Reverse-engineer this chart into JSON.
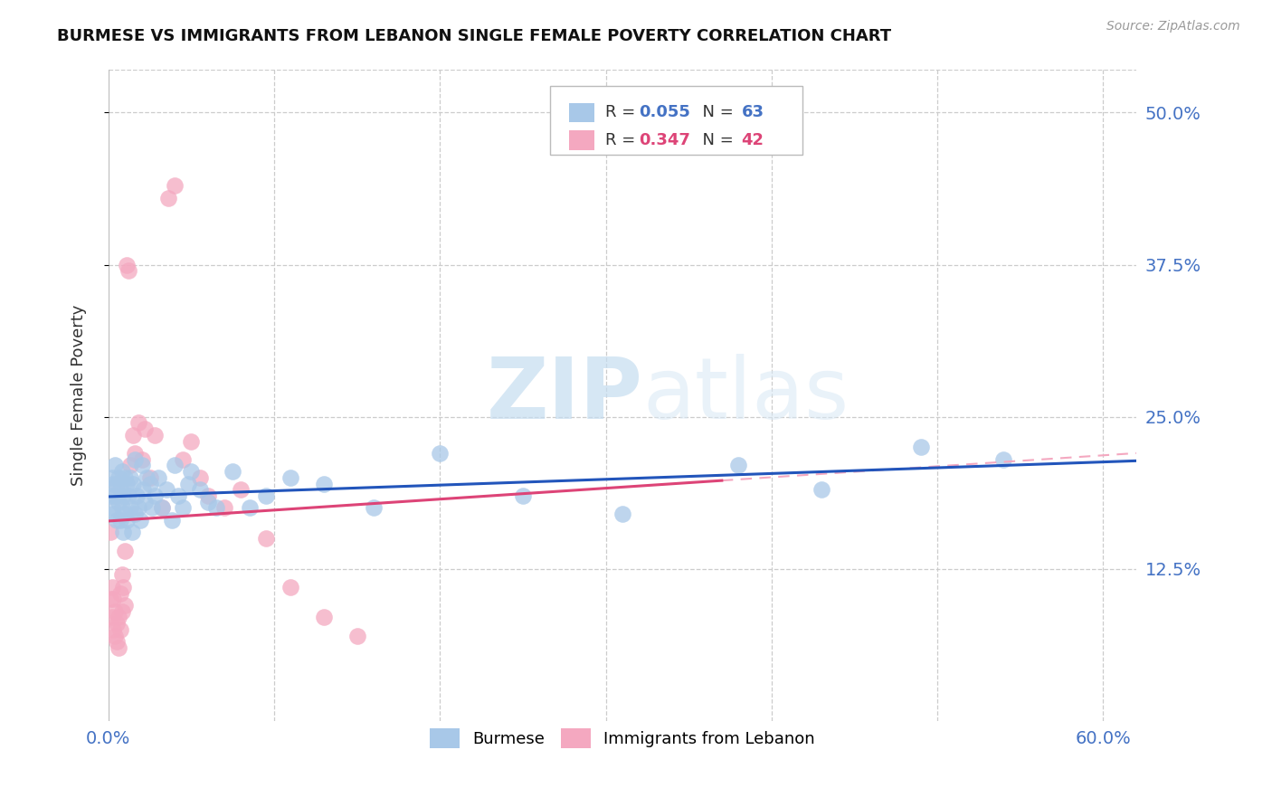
{
  "title": "BURMESE VS IMMIGRANTS FROM LEBANON SINGLE FEMALE POVERTY CORRELATION CHART",
  "source": "Source: ZipAtlas.com",
  "ylabel": "Single Female Poverty",
  "yticks": [
    "12.5%",
    "25.0%",
    "37.5%",
    "50.0%"
  ],
  "ytick_vals": [
    0.125,
    0.25,
    0.375,
    0.5
  ],
  "xlim": [
    0.0,
    0.62
  ],
  "ylim": [
    0.0,
    0.535
  ],
  "legend_label1": "Burmese",
  "legend_label2": "Immigrants from Lebanon",
  "R1": "0.055",
  "N1": "63",
  "R2": "0.347",
  "N2": "42",
  "color_blue": "#a8c8e8",
  "color_pink": "#f4a8c0",
  "color_blue_line": "#2255bb",
  "color_pink_line": "#dd4477",
  "color_pink_dash": "#f4a8c0",
  "watermark_zip": "ZIP",
  "watermark_atlas": "atlas",
  "burmese_x": [
    0.001,
    0.002,
    0.002,
    0.003,
    0.003,
    0.004,
    0.004,
    0.005,
    0.005,
    0.006,
    0.006,
    0.007,
    0.007,
    0.008,
    0.008,
    0.009,
    0.009,
    0.01,
    0.01,
    0.011,
    0.011,
    0.012,
    0.013,
    0.013,
    0.014,
    0.015,
    0.016,
    0.016,
    0.017,
    0.018,
    0.019,
    0.02,
    0.021,
    0.022,
    0.023,
    0.025,
    0.026,
    0.028,
    0.03,
    0.032,
    0.035,
    0.038,
    0.04,
    0.042,
    0.045,
    0.048,
    0.05,
    0.055,
    0.06,
    0.065,
    0.075,
    0.085,
    0.095,
    0.11,
    0.13,
    0.16,
    0.2,
    0.25,
    0.31,
    0.38,
    0.43,
    0.49,
    0.54
  ],
  "burmese_y": [
    0.185,
    0.2,
    0.175,
    0.195,
    0.17,
    0.21,
    0.185,
    0.165,
    0.195,
    0.18,
    0.2,
    0.165,
    0.19,
    0.175,
    0.205,
    0.155,
    0.185,
    0.2,
    0.17,
    0.195,
    0.165,
    0.185,
    0.2,
    0.175,
    0.155,
    0.195,
    0.17,
    0.215,
    0.185,
    0.175,
    0.165,
    0.21,
    0.19,
    0.18,
    0.2,
    0.195,
    0.175,
    0.185,
    0.2,
    0.175,
    0.19,
    0.165,
    0.21,
    0.185,
    0.175,
    0.195,
    0.205,
    0.19,
    0.18,
    0.175,
    0.205,
    0.175,
    0.185,
    0.2,
    0.195,
    0.175,
    0.22,
    0.185,
    0.17,
    0.21,
    0.19,
    0.225,
    0.215
  ],
  "lebanon_x": [
    0.001,
    0.001,
    0.002,
    0.002,
    0.003,
    0.003,
    0.004,
    0.004,
    0.005,
    0.005,
    0.006,
    0.006,
    0.007,
    0.007,
    0.008,
    0.008,
    0.009,
    0.01,
    0.01,
    0.011,
    0.012,
    0.013,
    0.015,
    0.016,
    0.018,
    0.02,
    0.022,
    0.025,
    0.028,
    0.032,
    0.036,
    0.04,
    0.045,
    0.05,
    0.055,
    0.06,
    0.07,
    0.08,
    0.095,
    0.11,
    0.13,
    0.15
  ],
  "lebanon_y": [
    0.155,
    0.1,
    0.11,
    0.085,
    0.1,
    0.075,
    0.09,
    0.07,
    0.08,
    0.065,
    0.085,
    0.06,
    0.105,
    0.075,
    0.12,
    0.09,
    0.11,
    0.14,
    0.095,
    0.375,
    0.37,
    0.21,
    0.235,
    0.22,
    0.245,
    0.215,
    0.24,
    0.2,
    0.235,
    0.175,
    0.43,
    0.44,
    0.215,
    0.23,
    0.2,
    0.185,
    0.175,
    0.19,
    0.15,
    0.11,
    0.085,
    0.07
  ]
}
